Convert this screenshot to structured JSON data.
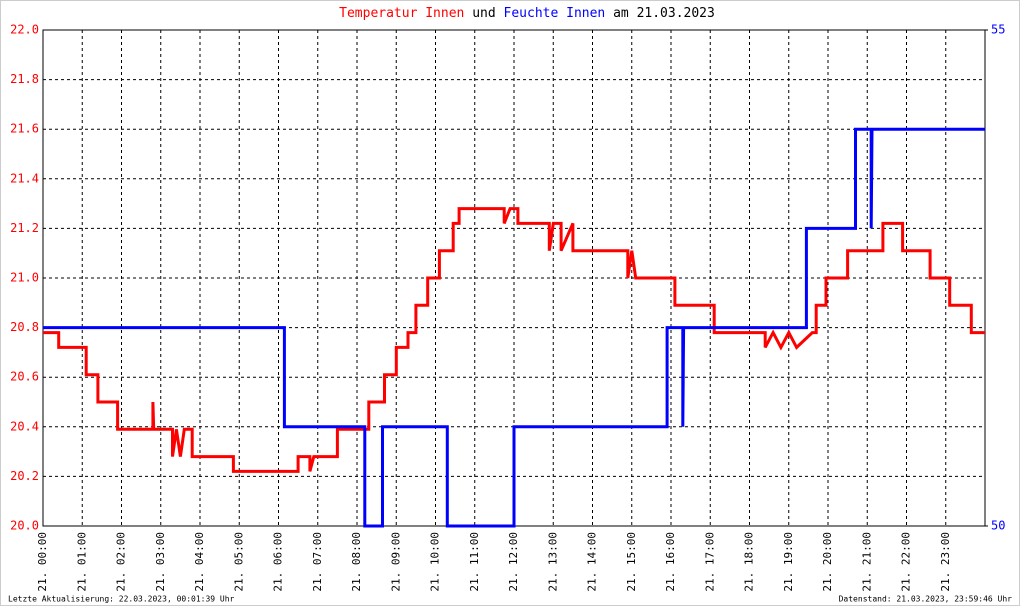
{
  "chart_data": {
    "type": "line",
    "title_parts": [
      {
        "text": "Temperatur Innen",
        "color": "#ff0000"
      },
      {
        "text": "und",
        "color": "#000000"
      },
      {
        "text": "Feuchte Innen",
        "color": "#0000ff"
      },
      {
        "text": "am 21.03.2023",
        "color": "#000000"
      }
    ],
    "footer_left": "Letzte Aktualisierung: 22.03.2023, 00:01:39 Uhr",
    "footer_right": "Datenstand: 21.03.2023, 23:59:46 Uhr",
    "xlim": [
      0,
      24
    ],
    "xticks": [
      {
        "value": 0,
        "label": "21. 00:00"
      },
      {
        "value": 1,
        "label": "21. 01:00"
      },
      {
        "value": 2,
        "label": "21. 02:00"
      },
      {
        "value": 3,
        "label": "21. 03:00"
      },
      {
        "value": 4,
        "label": "21. 04:00"
      },
      {
        "value": 5,
        "label": "21. 05:00"
      },
      {
        "value": 6,
        "label": "21. 06:00"
      },
      {
        "value": 7,
        "label": "21. 07:00"
      },
      {
        "value": 8,
        "label": "21. 08:00"
      },
      {
        "value": 9,
        "label": "21. 09:00"
      },
      {
        "value": 10,
        "label": "21. 10:00"
      },
      {
        "value": 11,
        "label": "21. 11:00"
      },
      {
        "value": 12,
        "label": "21. 12:00"
      },
      {
        "value": 13,
        "label": "21. 13:00"
      },
      {
        "value": 14,
        "label": "21. 14:00"
      },
      {
        "value": 15,
        "label": "21. 15:00"
      },
      {
        "value": 16,
        "label": "21. 16:00"
      },
      {
        "value": 17,
        "label": "21. 17:00"
      },
      {
        "value": 18,
        "label": "21. 18:00"
      },
      {
        "value": 19,
        "label": "21. 19:00"
      },
      {
        "value": 20,
        "label": "21. 20:00"
      },
      {
        "value": 21,
        "label": "21. 21:00"
      },
      {
        "value": 22,
        "label": "21. 22:00"
      },
      {
        "value": 23,
        "label": "21. 23:00"
      }
    ],
    "ylim": [
      20.0,
      22.0
    ],
    "yticks": [
      {
        "value": 20.0,
        "label": "20.0"
      },
      20.2,
      20.4,
      20.6,
      20.8,
      {
        "value": 21.0,
        "label": "21.0"
      },
      21.2,
      21.4,
      21.6,
      21.8,
      {
        "value": 22.0,
        "label": "22.0"
      }
    ],
    "y_color": "#ff0000",
    "y2lim": [
      50,
      55
    ],
    "y2ticks": [
      50,
      55
    ],
    "y2_color": "#0000ff",
    "grid": true,
    "series": [
      {
        "name": "Temperatur Innen",
        "color": "#ff0000",
        "x": [
          0,
          0.4,
          0.4,
          1.1,
          1.1,
          1.4,
          1.4,
          1.9,
          1.9,
          2.8,
          2.8,
          2.82,
          3.3,
          3.3,
          3.4,
          3.5,
          3.6,
          3.8,
          3.8,
          4.85,
          4.85,
          6.5,
          6.5,
          6.8,
          6.8,
          6.9,
          7.5,
          7.5,
          8.3,
          8.3,
          8.7,
          8.7,
          9.0,
          9.0,
          9.3,
          9.3,
          9.5,
          9.5,
          9.8,
          9.8,
          10.1,
          10.1,
          10.45,
          10.45,
          10.6,
          10.6,
          11.75,
          11.75,
          11.9,
          12.1,
          12.1,
          12.9,
          12.9,
          13.0,
          13.2,
          13.2,
          13.5,
          13.5,
          14.9,
          14.9,
          15.0,
          15.1,
          16.1,
          16.1,
          17.1,
          17.1,
          18.4,
          18.4,
          18.6,
          18.8,
          19.0,
          19.2,
          19.6,
          19.7,
          19.7,
          19.95,
          19.95,
          20.5,
          20.5,
          21.4,
          21.4,
          21.9,
          21.9,
          22.6,
          22.6,
          23.1,
          23.1,
          23.65,
          23.65,
          24
        ],
        "values": [
          20.78,
          20.78,
          20.72,
          20.72,
          20.61,
          20.61,
          20.5,
          20.5,
          20.39,
          20.39,
          20.5,
          20.39,
          20.39,
          20.28,
          20.39,
          20.28,
          20.39,
          20.39,
          20.28,
          20.28,
          20.22,
          20.22,
          20.28,
          20.28,
          20.22,
          20.28,
          20.28,
          20.39,
          20.39,
          20.5,
          20.5,
          20.61,
          20.61,
          20.72,
          20.72,
          20.78,
          20.78,
          20.89,
          20.89,
          21.0,
          21.0,
          21.11,
          21.11,
          21.22,
          21.22,
          21.28,
          21.28,
          21.22,
          21.28,
          21.28,
          21.22,
          21.22,
          21.11,
          21.22,
          21.22,
          21.11,
          21.22,
          21.11,
          21.11,
          21.0,
          21.11,
          21.0,
          21.0,
          20.89,
          20.89,
          20.78,
          20.78,
          20.72,
          20.78,
          20.72,
          20.78,
          20.72,
          20.78,
          20.78,
          20.89,
          20.89,
          21.0,
          21.0,
          21.11,
          21.11,
          21.22,
          21.22,
          21.11,
          21.11,
          21.0,
          21.0,
          20.89,
          20.89,
          20.78,
          20.78
        ]
      },
      {
        "name": "Feuchte Innen",
        "color": "#0000ff",
        "axis": "y2",
        "x": [
          0,
          6.15,
          6.15,
          8.2,
          8.2,
          8.65,
          8.65,
          10.3,
          10.3,
          12.0,
          12.0,
          15.9,
          15.9,
          16.3,
          16.3,
          16.32,
          19.45,
          19.45,
          20.7,
          20.7,
          21.1,
          21.1,
          21.12,
          24
        ],
        "values": [
          52,
          52,
          51,
          51,
          50,
          50,
          51,
          51,
          50,
          50,
          51,
          51,
          52,
          52,
          51,
          52,
          52,
          53,
          53,
          54,
          54,
          53,
          54,
          54
        ]
      }
    ]
  }
}
